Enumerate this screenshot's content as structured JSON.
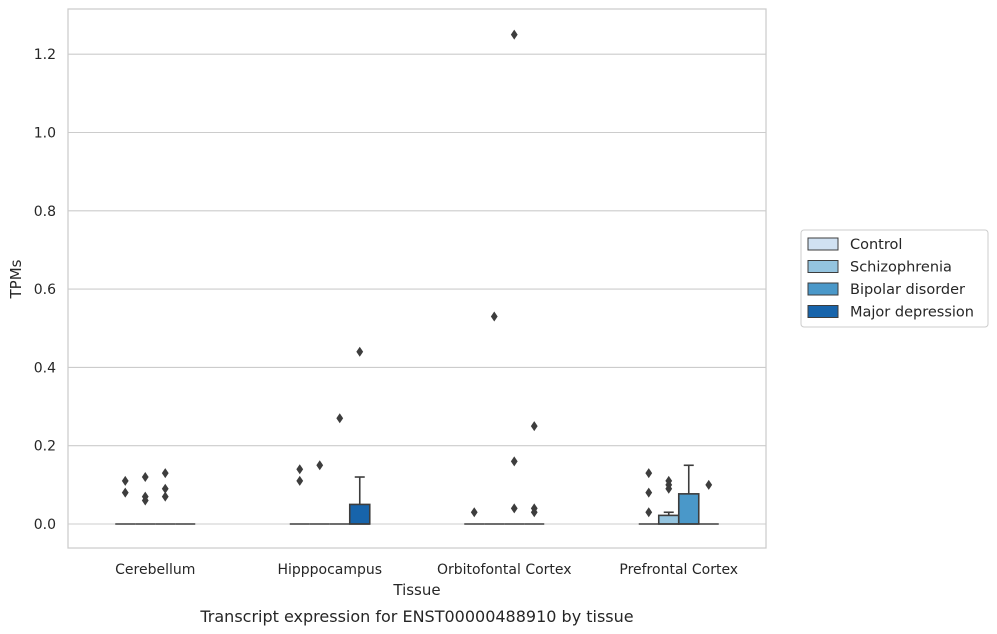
{
  "caption": "Transcript expression for ENST00000488910 by tissue",
  "chart_data": {
    "type": "box",
    "xlabel": "Tissue",
    "ylabel": "TPMs",
    "ylim": [
      -0.06,
      1.31
    ],
    "yticks": [
      "0.0",
      "0.2",
      "0.4",
      "0.6",
      "0.8",
      "1.0",
      "1.2"
    ],
    "categories": [
      "Cerebellum",
      "Hipppocampus",
      "Orbitofontal Cortex",
      "Prefrontal Cortex"
    ],
    "grid": "horizontal",
    "legend_position": "right",
    "series": [
      {
        "name": "Control",
        "color": "#d0e1f2",
        "boxes": [
          {
            "q1": 0,
            "median": 0,
            "q3": 0,
            "whisker_low": 0,
            "whisker_high": 0,
            "outliers": [
              0.08,
              0.11
            ]
          },
          {
            "q1": 0,
            "median": 0,
            "q3": 0,
            "whisker_low": 0,
            "whisker_high": 0,
            "outliers": [
              0.11,
              0.14
            ]
          },
          {
            "q1": 0,
            "median": 0,
            "q3": 0,
            "whisker_low": 0,
            "whisker_high": 0,
            "outliers": [
              0.03
            ]
          },
          {
            "q1": 0,
            "median": 0,
            "q3": 0,
            "whisker_low": 0,
            "whisker_high": 0,
            "outliers": [
              0.03,
              0.08,
              0.13
            ]
          }
        ]
      },
      {
        "name": "Schizophrenia",
        "color": "#94c4df",
        "boxes": [
          {
            "q1": 0,
            "median": 0,
            "q3": 0,
            "whisker_low": 0,
            "whisker_high": 0,
            "outliers": [
              0.06,
              0.07,
              0.12
            ]
          },
          {
            "q1": 0,
            "median": 0,
            "q3": 0,
            "whisker_low": 0,
            "whisker_high": 0,
            "outliers": [
              0.15
            ]
          },
          {
            "q1": 0,
            "median": 0,
            "q3": 0,
            "whisker_low": 0,
            "whisker_high": 0,
            "outliers": [
              0.53
            ]
          },
          {
            "q1": 0,
            "median": 0,
            "q3": 0.022,
            "whisker_low": 0,
            "whisker_high": 0.03,
            "outliers": [
              0.09,
              0.1,
              0.11
            ]
          }
        ]
      },
      {
        "name": "Bipolar disorder",
        "color": "#4a98c9",
        "boxes": [
          {
            "q1": 0,
            "median": 0,
            "q3": 0,
            "whisker_low": 0,
            "whisker_high": 0,
            "outliers": [
              0.07,
              0.09,
              0.13
            ]
          },
          {
            "q1": 0,
            "median": 0,
            "q3": 0,
            "whisker_low": 0,
            "whisker_high": 0,
            "outliers": [
              0.27
            ]
          },
          {
            "q1": 0,
            "median": 0,
            "q3": 0,
            "whisker_low": 0,
            "whisker_high": 0,
            "outliers": [
              0.04,
              0.16,
              1.25
            ]
          },
          {
            "q1": 0,
            "median": 0,
            "q3": 0.077,
            "whisker_low": 0,
            "whisker_high": 0.15,
            "outliers": []
          }
        ]
      },
      {
        "name": "Major depression",
        "color": "#1764ab",
        "boxes": [
          {
            "q1": 0,
            "median": 0,
            "q3": 0,
            "whisker_low": 0,
            "whisker_high": 0,
            "outliers": []
          },
          {
            "q1": 0,
            "median": 0,
            "q3": 0.05,
            "whisker_low": 0,
            "whisker_high": 0.12,
            "outliers": [
              0.44
            ]
          },
          {
            "q1": 0,
            "median": 0,
            "q3": 0,
            "whisker_low": 0,
            "whisker_high": 0,
            "outliers": [
              0.03,
              0.04,
              0.25
            ]
          },
          {
            "q1": 0,
            "median": 0,
            "q3": 0,
            "whisker_low": 0,
            "whisker_high": 0,
            "outliers": [
              0.1
            ]
          }
        ]
      }
    ]
  }
}
